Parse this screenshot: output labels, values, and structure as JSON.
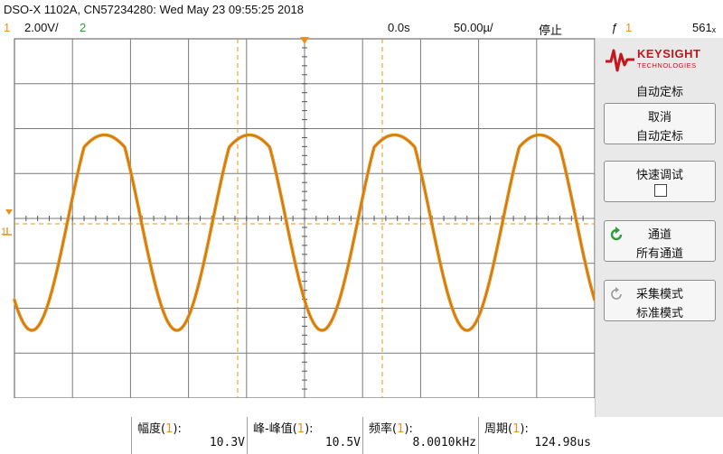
{
  "header": {
    "title": "DSO-X 1102A, CN57234280: Wed May 23 09:55:25 2018"
  },
  "status": {
    "ch1_num": "1",
    "ch1_scale": "2.00V/",
    "ch2_num": "2",
    "time_delay": "0.0s",
    "time_scale": "50.00µ/",
    "run_state": "停止",
    "trigger_symbol": "ƒ",
    "trigger_channel": "1",
    "trigger_level": "561ₓ"
  },
  "waveform": {
    "color": "#e8911c",
    "cycles": 4
  },
  "panel": {
    "logo_word": "KEYSIGHT",
    "logo_sub": "TECHNOLOGIES",
    "menu_title": "自动定标",
    "keys": [
      {
        "line1": "取消",
        "line2": "自动定标"
      },
      {
        "line1": "快速调试",
        "line2": ""
      },
      {
        "line1": "通道",
        "line2": "所有通道"
      },
      {
        "line1": "采集模式",
        "line2": "标准模式"
      }
    ]
  },
  "measurements": [
    {
      "label": "幅度",
      "channel": "1",
      "value": "10.3V"
    },
    {
      "label": "峰-峰值",
      "channel": "1",
      "value": "10.5V"
    },
    {
      "label": "频率",
      "channel": "1",
      "value": "8.0010kHz"
    },
    {
      "label": "周期",
      "channel": "1",
      "value": "124.98us"
    }
  ]
}
